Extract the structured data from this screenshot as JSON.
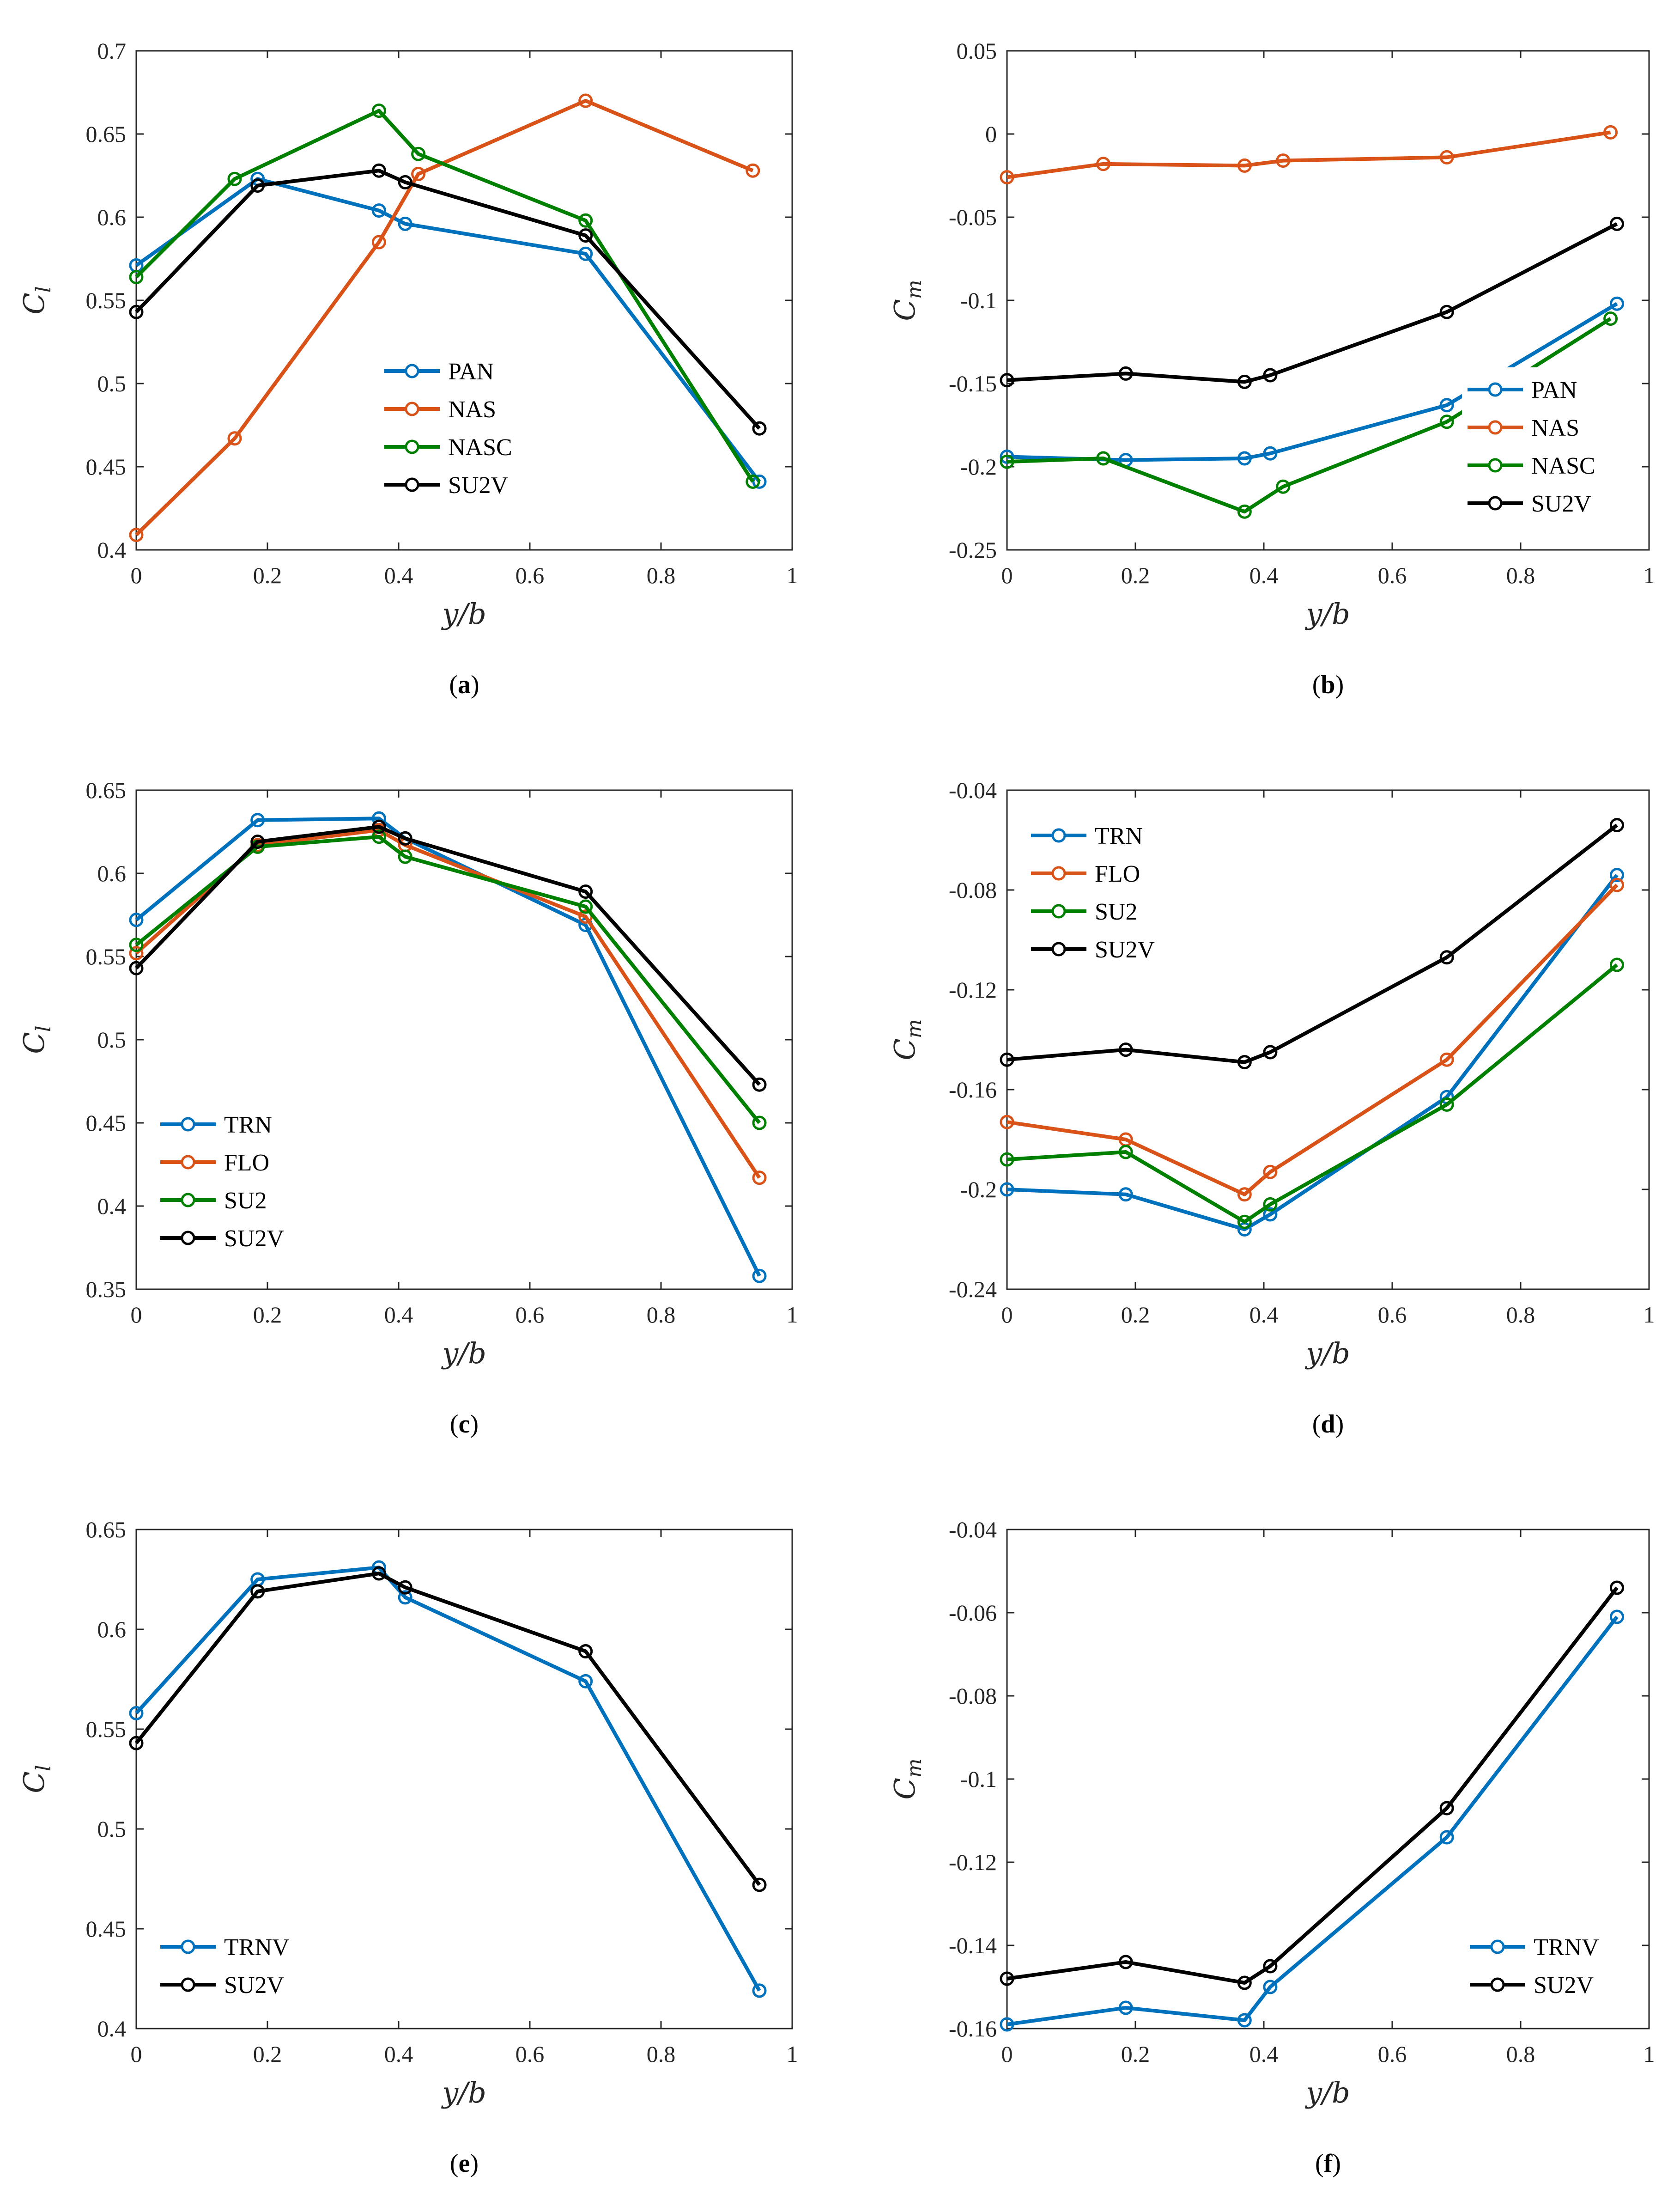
{
  "chart_data": [
    {
      "type": "line",
      "panel": "a",
      "ylabel": "C",
      "ylabel_sub": "l",
      "xlabel": "y/b",
      "xlim": [
        0,
        1
      ],
      "ylim": [
        0.4,
        0.7
      ],
      "xticks": [
        "0",
        "0.2",
        "0.4",
        "0.6",
        "0.8",
        "1"
      ],
      "yticks": [
        "0.4",
        "0.45",
        "0.5",
        "0.55",
        "0.6",
        "0.65",
        "0.7"
      ],
      "legend_position": "center",
      "series": [
        {
          "name": "PAN",
          "color": "#0072BD",
          "x": [
            0,
            0.185,
            0.37,
            0.41,
            0.685,
            0.95
          ],
          "y": [
            0.571,
            0.623,
            0.604,
            0.596,
            0.578,
            0.441
          ]
        },
        {
          "name": "NAS",
          "color": "#D95319",
          "x": [
            0,
            0.15,
            0.37,
            0.43,
            0.685,
            0.94
          ],
          "y": [
            0.409,
            0.467,
            0.585,
            0.626,
            0.67,
            0.628
          ]
        },
        {
          "name": "NASC",
          "color": "#008000",
          "x": [
            0,
            0.15,
            0.37,
            0.43,
            0.685,
            0.94
          ],
          "y": [
            0.564,
            0.623,
            0.664,
            0.638,
            0.598,
            0.441
          ]
        },
        {
          "name": "SU2V",
          "color": "#000000",
          "x": [
            0,
            0.185,
            0.37,
            0.41,
            0.685,
            0.95
          ],
          "y": [
            0.543,
            0.619,
            0.628,
            0.621,
            0.589,
            0.473
          ]
        }
      ]
    },
    {
      "type": "line",
      "panel": "b",
      "ylabel": "C",
      "ylabel_sub": "m",
      "xlabel": "y/b",
      "xlim": [
        0,
        1
      ],
      "ylim": [
        -0.25,
        0.05
      ],
      "xticks": [
        "0",
        "0.2",
        "0.4",
        "0.6",
        "0.8",
        "1"
      ],
      "yticks": [
        "-0.25",
        "-0.2",
        "-0.15",
        "-0.1",
        "-0.05",
        "0",
        "0.05"
      ],
      "legend_position": "bottom-right",
      "series": [
        {
          "name": "PAN",
          "color": "#0072BD",
          "x": [
            0,
            0.185,
            0.37,
            0.41,
            0.685,
            0.95
          ],
          "y": [
            -0.194,
            -0.196,
            -0.195,
            -0.192,
            -0.163,
            -0.102
          ]
        },
        {
          "name": "NAS",
          "color": "#D95319",
          "x": [
            0,
            0.15,
            0.37,
            0.43,
            0.685,
            0.94
          ],
          "y": [
            -0.026,
            -0.018,
            -0.019,
            -0.016,
            -0.014,
            0.001
          ]
        },
        {
          "name": "NASC",
          "color": "#008000",
          "x": [
            0,
            0.15,
            0.37,
            0.43,
            0.685,
            0.94
          ],
          "y": [
            -0.197,
            -0.195,
            -0.227,
            -0.212,
            -0.173,
            -0.111
          ]
        },
        {
          "name": "SU2V",
          "color": "#000000",
          "x": [
            0,
            0.185,
            0.37,
            0.41,
            0.685,
            0.95
          ],
          "y": [
            -0.148,
            -0.144,
            -0.149,
            -0.145,
            -0.107,
            -0.054
          ]
        }
      ]
    },
    {
      "type": "line",
      "panel": "c",
      "ylabel": "C",
      "ylabel_sub": "l",
      "xlabel": "y/b",
      "xlim": [
        0,
        1
      ],
      "ylim": [
        0.35,
        0.65
      ],
      "xticks": [
        "0",
        "0.2",
        "0.4",
        "0.6",
        "0.8",
        "1"
      ],
      "yticks": [
        "0.35",
        "0.4",
        "0.45",
        "0.5",
        "0.55",
        "0.6",
        "0.65"
      ],
      "legend_position": "bottom-left",
      "series": [
        {
          "name": "TRN",
          "color": "#0072BD",
          "x": [
            0,
            0.185,
            0.37,
            0.41,
            0.685,
            0.95
          ],
          "y": [
            0.572,
            0.632,
            0.633,
            0.621,
            0.569,
            0.358
          ]
        },
        {
          "name": "FLO",
          "color": "#D95319",
          "x": [
            0,
            0.185,
            0.37,
            0.41,
            0.685,
            0.95
          ],
          "y": [
            0.552,
            0.617,
            0.626,
            0.617,
            0.574,
            0.417
          ]
        },
        {
          "name": "SU2",
          "color": "#008000",
          "x": [
            0,
            0.185,
            0.37,
            0.41,
            0.685,
            0.95
          ],
          "y": [
            0.557,
            0.616,
            0.622,
            0.61,
            0.58,
            0.45
          ]
        },
        {
          "name": "SU2V",
          "color": "#000000",
          "x": [
            0,
            0.185,
            0.37,
            0.41,
            0.685,
            0.95
          ],
          "y": [
            0.543,
            0.619,
            0.628,
            0.621,
            0.589,
            0.473
          ]
        }
      ]
    },
    {
      "type": "line",
      "panel": "d",
      "ylabel": "C",
      "ylabel_sub": "m",
      "xlabel": "y/b",
      "xlim": [
        0,
        1
      ],
      "ylim": [
        -0.24,
        -0.04
      ],
      "xticks": [
        "0",
        "0.2",
        "0.4",
        "0.6",
        "0.8",
        "1"
      ],
      "yticks": [
        "-0.24",
        "-0.2",
        "-0.16",
        "-0.12",
        "-0.08",
        "-0.04"
      ],
      "legend_position": "top-left",
      "series": [
        {
          "name": "TRN",
          "color": "#0072BD",
          "x": [
            0,
            0.185,
            0.37,
            0.41,
            0.685,
            0.95
          ],
          "y": [
            -0.2,
            -0.202,
            -0.216,
            -0.21,
            -0.163,
            -0.074
          ]
        },
        {
          "name": "FLO",
          "color": "#D95319",
          "x": [
            0,
            0.185,
            0.37,
            0.41,
            0.685,
            0.95
          ],
          "y": [
            -0.173,
            -0.18,
            -0.202,
            -0.193,
            -0.148,
            -0.078
          ]
        },
        {
          "name": "SU2",
          "color": "#008000",
          "x": [
            0,
            0.185,
            0.37,
            0.41,
            0.685,
            0.95
          ],
          "y": [
            -0.188,
            -0.185,
            -0.213,
            -0.206,
            -0.166,
            -0.11
          ]
        },
        {
          "name": "SU2V",
          "color": "#000000",
          "x": [
            0,
            0.185,
            0.37,
            0.41,
            0.685,
            0.95
          ],
          "y": [
            -0.148,
            -0.144,
            -0.149,
            -0.145,
            -0.107,
            -0.054
          ]
        }
      ]
    },
    {
      "type": "line",
      "panel": "e",
      "ylabel": "C",
      "ylabel_sub": "l",
      "xlabel": "y/b",
      "xlim": [
        0,
        1
      ],
      "ylim": [
        0.4,
        0.65
      ],
      "xticks": [
        "0",
        "0.2",
        "0.4",
        "0.6",
        "0.8",
        "1"
      ],
      "yticks": [
        "0.4",
        "0.45",
        "0.5",
        "0.55",
        "0.6",
        "0.65"
      ],
      "legend_position": "bottom-left",
      "series": [
        {
          "name": "TRNV",
          "color": "#0072BD",
          "x": [
            0,
            0.185,
            0.37,
            0.41,
            0.685,
            0.95
          ],
          "y": [
            0.558,
            0.625,
            0.631,
            0.616,
            0.574,
            0.419
          ]
        },
        {
          "name": "SU2V",
          "color": "#000000",
          "x": [
            0,
            0.185,
            0.37,
            0.41,
            0.685,
            0.95
          ],
          "y": [
            0.543,
            0.619,
            0.628,
            0.621,
            0.589,
            0.472
          ]
        }
      ]
    },
    {
      "type": "line",
      "panel": "f",
      "ylabel": "C",
      "ylabel_sub": "m",
      "xlabel": "y/b",
      "xlim": [
        0,
        1
      ],
      "ylim": [
        -0.16,
        -0.04
      ],
      "xticks": [
        "0",
        "0.2",
        "0.4",
        "0.6",
        "0.8",
        "1"
      ],
      "yticks": [
        "-0.16",
        "-0.14",
        "-0.12",
        "-0.1",
        "-0.08",
        "-0.06",
        "-0.04"
      ],
      "legend_position": "bottom-right",
      "series": [
        {
          "name": "TRNV",
          "color": "#0072BD",
          "x": [
            0,
            0.185,
            0.37,
            0.41,
            0.685,
            0.95
          ],
          "y": [
            -0.159,
            -0.155,
            -0.158,
            -0.15,
            -0.114,
            -0.061
          ]
        },
        {
          "name": "SU2V",
          "color": "#000000",
          "x": [
            0,
            0.185,
            0.37,
            0.41,
            0.685,
            0.95
          ],
          "y": [
            -0.148,
            -0.144,
            -0.149,
            -0.145,
            -0.107,
            -0.054
          ]
        }
      ]
    }
  ],
  "captions": [
    "(a)",
    "(b)",
    "(c)",
    "(d)",
    "(e)",
    "(f)"
  ],
  "caption_letters": [
    "a",
    "b",
    "c",
    "d",
    "e",
    "f"
  ]
}
